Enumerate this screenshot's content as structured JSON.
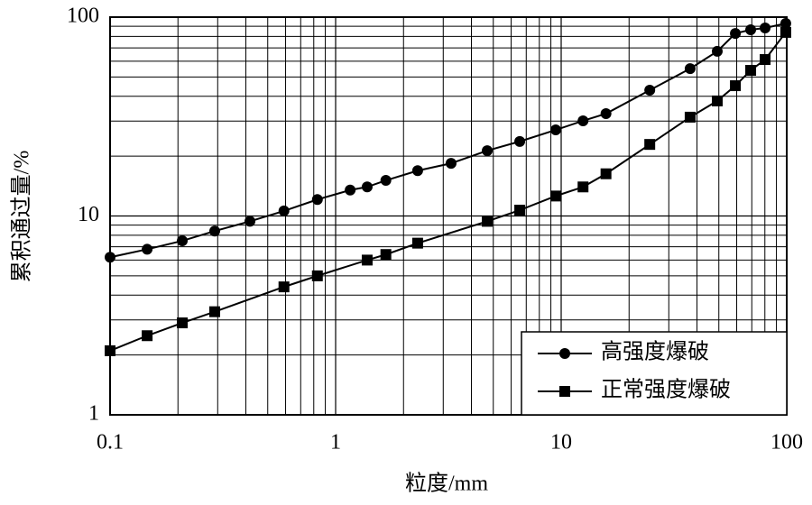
{
  "chart_data": {
    "type": "line",
    "x_label": "粒度/mm",
    "y_label": "累积通过量/%",
    "xscale": "log",
    "yscale": "log",
    "grid": true,
    "legend": "lower right",
    "xlim": [
      0.1,
      100
    ],
    "ylim": [
      1,
      100
    ],
    "xticks": [
      0.1,
      1,
      10,
      100
    ],
    "yticks": [
      1,
      10,
      100
    ],
    "series": [
      {
        "name": "高强度爆破",
        "color": "#000000",
        "marker": "circle",
        "x": [
          0.1,
          0.146,
          0.209,
          0.291,
          0.417,
          0.59,
          0.83,
          1.16,
          1.38,
          1.67,
          2.31,
          3.25,
          4.7,
          6.55,
          9.46,
          12.5,
          15.8,
          24.7,
          37.3,
          49.2,
          59.2,
          69.2,
          80.2,
          99
        ],
        "values": [
          6.2,
          6.8,
          7.5,
          8.4,
          9.4,
          10.6,
          12.1,
          13.5,
          14.0,
          15.1,
          16.9,
          18.4,
          21.3,
          23.7,
          27.1,
          30.1,
          32.7,
          42.9,
          55.1,
          67.3,
          82.8,
          86.4,
          88.2,
          93
        ]
      },
      {
        "name": "正常强度爆破",
        "color": "#000000",
        "marker": "square",
        "x": [
          0.1,
          0.146,
          0.209,
          0.291,
          0.59,
          0.83,
          1.38,
          1.67,
          2.31,
          4.7,
          6.55,
          9.46,
          12.5,
          15.8,
          24.7,
          37.3,
          49.2,
          59.2,
          69.2,
          80.2,
          99
        ],
        "values": [
          2.1,
          2.5,
          2.9,
          3.3,
          4.4,
          5.0,
          6.0,
          6.4,
          7.3,
          9.4,
          10.7,
          12.6,
          14.0,
          16.3,
          22.9,
          31.4,
          37.9,
          45.2,
          54.0,
          61.2,
          83.8
        ]
      }
    ]
  }
}
